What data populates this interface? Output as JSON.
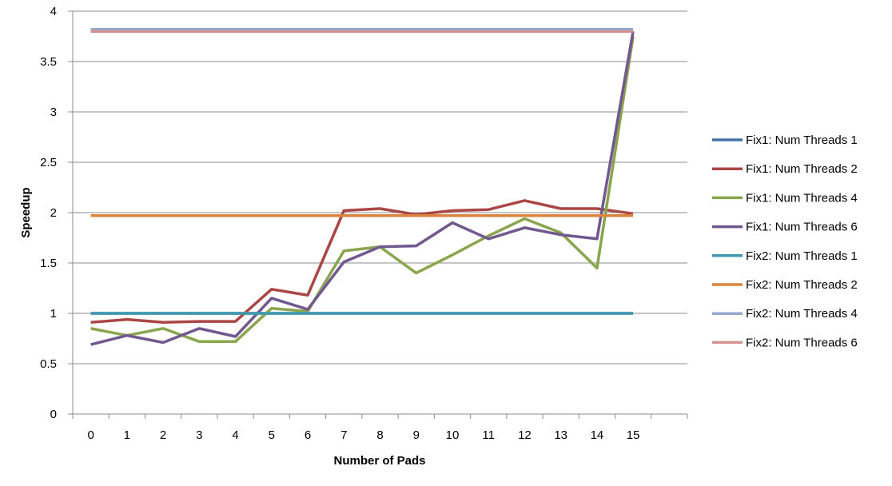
{
  "chart_data": {
    "type": "line",
    "title": "",
    "xlabel": "Number of Pads",
    "ylabel": "Speedup",
    "x": [
      0,
      1,
      2,
      3,
      4,
      5,
      6,
      7,
      8,
      9,
      10,
      11,
      12,
      13,
      14,
      15
    ],
    "x_tick_labels": [
      "0",
      "1",
      "2",
      "3",
      "4",
      "5",
      "6",
      "7",
      "8",
      "9",
      "10",
      "11",
      "12",
      "13",
      "14",
      "15"
    ],
    "ylim": [
      0,
      4
    ],
    "y_ticks": [
      0,
      0.5,
      1,
      1.5,
      2,
      2.5,
      3,
      3.5,
      4
    ],
    "y_tick_labels": [
      "0",
      "0.5",
      "1",
      "1.5",
      "2",
      "2.5",
      "3",
      "3.5",
      "4"
    ],
    "grid": "horizontal",
    "legend_position": "right",
    "series": [
      {
        "name": "Fix1: Num Threads 1",
        "color": "#4572a7",
        "values": [
          1,
          1,
          1,
          1,
          1,
          1,
          1,
          1,
          1,
          1,
          1,
          1,
          1,
          1,
          1,
          1
        ]
      },
      {
        "name": "Fix1: Num Threads 2",
        "color": "#aa4643",
        "values": [
          0.91,
          0.94,
          0.91,
          0.92,
          0.92,
          1.24,
          1.18,
          2.02,
          2.04,
          1.98,
          2.02,
          2.03,
          2.12,
          2.04,
          2.04,
          1.99
        ]
      },
      {
        "name": "Fix1: Num Threads 4",
        "color": "#89a54e",
        "values": [
          0.85,
          0.78,
          0.85,
          0.72,
          0.72,
          1.05,
          1.02,
          1.62,
          1.66,
          1.4,
          1.58,
          1.77,
          1.94,
          1.8,
          1.45,
          3.75
        ]
      },
      {
        "name": "Fix1: Num Threads 6",
        "color": "#71588f",
        "values": [
          0.69,
          0.78,
          0.71,
          0.85,
          0.77,
          1.15,
          1.04,
          1.51,
          1.66,
          1.67,
          1.9,
          1.74,
          1.85,
          1.78,
          1.74,
          3.8
        ]
      },
      {
        "name": "Fix2: Num Threads 1",
        "color": "#4198af",
        "values": [
          1,
          1,
          1,
          1,
          1,
          1,
          1,
          1,
          1,
          1,
          1,
          1,
          1,
          1,
          1,
          1
        ]
      },
      {
        "name": "Fix2: Num Threads 2",
        "color": "#db843d",
        "values": [
          1.97,
          1.97,
          1.97,
          1.97,
          1.97,
          1.97,
          1.97,
          1.97,
          1.97,
          1.97,
          1.97,
          1.97,
          1.97,
          1.97,
          1.97,
          1.97
        ]
      },
      {
        "name": "Fix2: Num Threads 4",
        "color": "#93a9cf",
        "values": [
          3.82,
          3.82,
          3.82,
          3.82,
          3.82,
          3.82,
          3.82,
          3.82,
          3.82,
          3.82,
          3.82,
          3.82,
          3.82,
          3.82,
          3.82,
          3.82
        ]
      },
      {
        "name": "Fix2: Num Threads 6",
        "color": "#d19392",
        "values": [
          3.8,
          3.8,
          3.8,
          3.8,
          3.8,
          3.8,
          3.8,
          3.8,
          3.8,
          3.8,
          3.8,
          3.8,
          3.8,
          3.8,
          3.8,
          3.8
        ]
      }
    ]
  }
}
